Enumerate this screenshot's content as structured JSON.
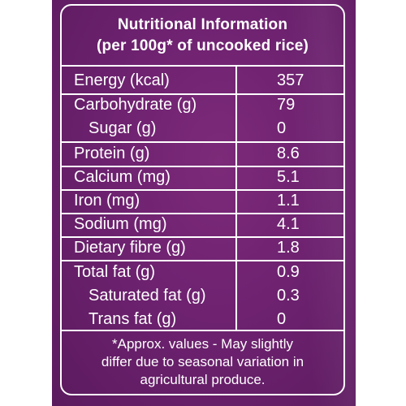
{
  "heading": {
    "line1": "Nutritional Information",
    "line2": "(per 100g* of uncooked rice)"
  },
  "rows": [
    {
      "name": "Energy (kcal)",
      "value": "357"
    },
    {
      "name": "Carbohydrate (g)",
      "value": "79"
    },
    {
      "name": "Sugar (g)",
      "value": "0"
    },
    {
      "name": "Protein (g)",
      "value": "8.6"
    },
    {
      "name": "Calcium (mg)",
      "value": "5.1"
    },
    {
      "name": "Iron (mg)",
      "value": "1.1"
    },
    {
      "name": "Sodium (mg)",
      "value": "4.1"
    },
    {
      "name": "Dietary fibre (g)",
      "value": "1.8"
    },
    {
      "name": "Total fat (g)",
      "value": "0.9"
    },
    {
      "name": "Saturated fat (g)",
      "value": "0.3"
    },
    {
      "name": "Trans fat (g)",
      "value": "0"
    }
  ],
  "footnote": {
    "line1": "*Approx. values - May slightly",
    "line2": "differ due to seasonal variation in",
    "line3": "agricultural produce."
  },
  "colors": {
    "panel": "#6e2270",
    "text": "#ffffff"
  }
}
